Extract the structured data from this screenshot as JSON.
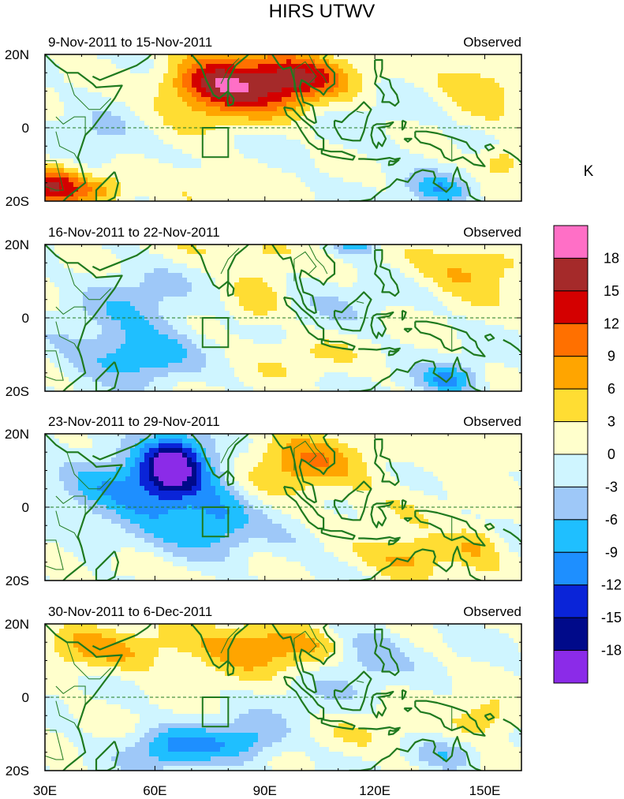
{
  "chart_data": {
    "type": "heatmap",
    "title": "HIRS UTWV",
    "unit_label": "K",
    "colorbar": {
      "levels": [
        18,
        15,
        12,
        9,
        6,
        3,
        0,
        -3,
        -6,
        -9,
        -12,
        -15,
        -18
      ],
      "colors": [
        "#ff6fc6",
        "#a52a2a",
        "#d40000",
        "#ff7000",
        "#ffa500",
        "#ffdd33",
        "#ffffcc",
        "#cff5ff",
        "#9ec8f8",
        "#1fbfff",
        "#1e8fff",
        "#0a24d8",
        "#000a8a",
        "#8b2be8"
      ]
    },
    "x_ticks": [
      "30E",
      "60E",
      "90E",
      "120E",
      "150E"
    ],
    "y_ticks": [
      "20N",
      "0",
      "20S"
    ],
    "lon_range": [
      30,
      160
    ],
    "lat_range": [
      -20,
      20
    ],
    "panels": [
      {
        "date_range": "9-Nov-2011 to 15-Nov-2011",
        "label": "Observed",
        "anomalies": [
          {
            "lon": 88,
            "lat": 12,
            "value": 14,
            "sx": 16,
            "sy": 7
          },
          {
            "lon": 75,
            "lat": 12,
            "value": 7,
            "sx": 8,
            "sy": 5
          },
          {
            "lon": 99,
            "lat": 14,
            "value": 6,
            "sx": 9,
            "sy": 4
          },
          {
            "lon": 148,
            "lat": 12,
            "value": 6,
            "sx": 9,
            "sy": 5
          },
          {
            "lon": 32,
            "lat": -16,
            "value": 13,
            "sx": 6,
            "sy": 4
          },
          {
            "lon": 45,
            "lat": -17,
            "value": 8,
            "sx": 6,
            "sy": 3
          },
          {
            "lon": 138,
            "lat": -17,
            "value": -8,
            "sx": 6,
            "sy": 3
          },
          {
            "lon": 45,
            "lat": -4,
            "value": -4,
            "sx": 8,
            "sy": 5
          },
          {
            "lon": 155,
            "lat": -9,
            "value": 6,
            "sx": 5,
            "sy": 3
          },
          {
            "lon": 110,
            "lat": 4,
            "value": -2,
            "sx": 18,
            "sy": 8
          },
          {
            "lon": 70,
            "lat": -14,
            "value": 3,
            "sx": 10,
            "sy": 4
          },
          {
            "lon": 60,
            "lat": 18,
            "value": -3,
            "sx": 8,
            "sy": 3
          }
        ]
      },
      {
        "date_range": "16-Nov-2011 to 22-Nov-2011",
        "label": "Observed",
        "anomalies": [
          {
            "lon": 57,
            "lat": -10,
            "value": -8,
            "sx": 9,
            "sy": 5
          },
          {
            "lon": 55,
            "lat": 3,
            "value": -5,
            "sx": 10,
            "sy": 7
          },
          {
            "lon": 146,
            "lat": 13,
            "value": 7,
            "sx": 10,
            "sy": 5
          },
          {
            "lon": 140,
            "lat": -17,
            "value": -9,
            "sx": 6,
            "sy": 3
          },
          {
            "lon": 115,
            "lat": 20,
            "value": -8,
            "sx": 4,
            "sy": 2
          },
          {
            "lon": 85,
            "lat": 18,
            "value": 4,
            "sx": 12,
            "sy": 3
          },
          {
            "lon": 88,
            "lat": 6,
            "value": 4,
            "sx": 5,
            "sy": 7
          },
          {
            "lon": 100,
            "lat": -10,
            "value": 3,
            "sx": 10,
            "sy": 4
          },
          {
            "lon": 40,
            "lat": -10,
            "value": -3,
            "sx": 8,
            "sy": 5
          },
          {
            "lon": 108,
            "lat": 5,
            "value": -2,
            "sx": 12,
            "sy": 6
          }
        ]
      },
      {
        "date_range": "23-Nov-2011 to 29-Nov-2011",
        "label": "Observed",
        "anomalies": [
          {
            "lon": 65,
            "lat": 12,
            "value": -14,
            "sx": 6,
            "sy": 6
          },
          {
            "lon": 62,
            "lat": 3,
            "value": -10,
            "sx": 12,
            "sy": 10
          },
          {
            "lon": 78,
            "lat": -3,
            "value": -6,
            "sx": 6,
            "sy": 6
          },
          {
            "lon": 100,
            "lat": 13,
            "value": 8,
            "sx": 11,
            "sy": 6
          },
          {
            "lon": 130,
            "lat": -14,
            "value": 8,
            "sx": 8,
            "sy": 4
          },
          {
            "lon": 148,
            "lat": -10,
            "value": 6,
            "sx": 5,
            "sy": 4
          },
          {
            "lon": 148,
            "lat": 15,
            "value": 5,
            "sx": 7,
            "sy": 4
          },
          {
            "lon": 55,
            "lat": -16,
            "value": 5,
            "sx": 7,
            "sy": 3
          },
          {
            "lon": 42,
            "lat": 8,
            "value": -4,
            "sx": 8,
            "sy": 5
          },
          {
            "lon": 120,
            "lat": 3,
            "value": 2,
            "sx": 12,
            "sy": 6
          },
          {
            "lon": 96,
            "lat": -10,
            "value": -2,
            "sx": 8,
            "sy": 4
          }
        ]
      },
      {
        "date_range": "30-Nov-2011 to 6-Dec-2011",
        "label": "Observed",
        "anomalies": [
          {
            "lon": 88,
            "lat": 14,
            "value": 9,
            "sx": 15,
            "sy": 5
          },
          {
            "lon": 65,
            "lat": -14,
            "value": -9,
            "sx": 8,
            "sy": 4
          },
          {
            "lon": 84,
            "lat": -12,
            "value": -8,
            "sx": 8,
            "sy": 4
          },
          {
            "lon": 118,
            "lat": 13,
            "value": -6,
            "sx": 7,
            "sy": 5
          },
          {
            "lon": 40,
            "lat": 14,
            "value": 5,
            "sx": 8,
            "sy": 5
          },
          {
            "lon": 150,
            "lat": -6,
            "value": 6,
            "sx": 6,
            "sy": 4
          },
          {
            "lon": 140,
            "lat": -16,
            "value": -5,
            "sx": 6,
            "sy": 3
          },
          {
            "lon": 55,
            "lat": 12,
            "value": 4,
            "sx": 8,
            "sy": 4
          },
          {
            "lon": 120,
            "lat": -10,
            "value": 2,
            "sx": 12,
            "sy": 5
          },
          {
            "lon": 105,
            "lat": 2,
            "value": -2,
            "sx": 10,
            "sy": 6
          }
        ]
      }
    ],
    "equator_line": "dashed",
    "target_box": {
      "lon_min": 73,
      "lon_max": 80,
      "lat_min": -8,
      "lat_max": 0
    }
  }
}
